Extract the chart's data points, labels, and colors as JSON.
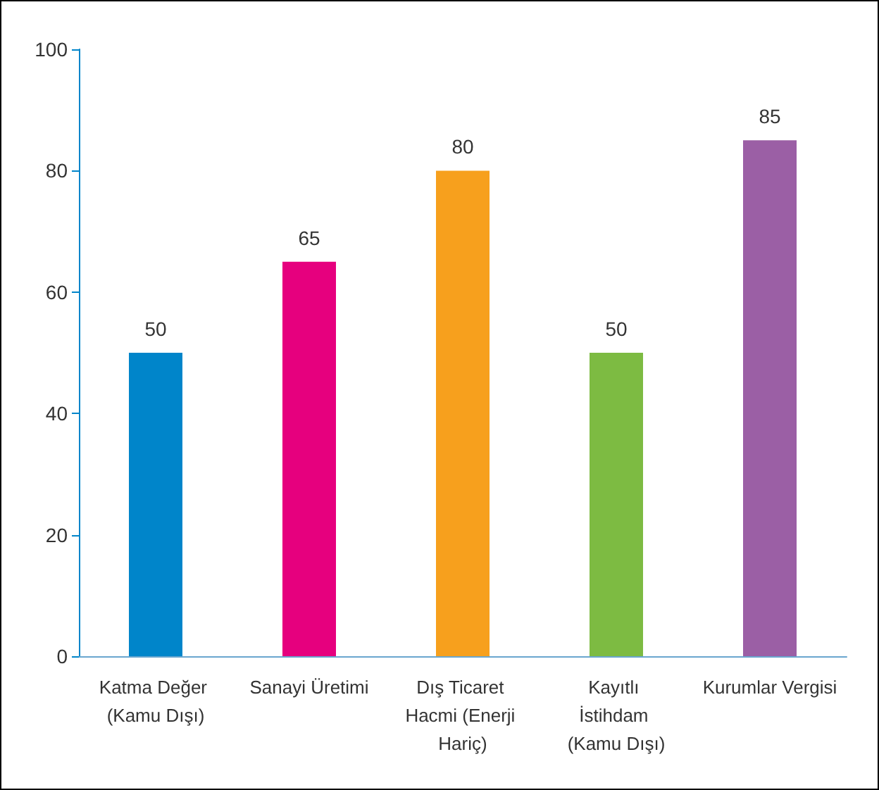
{
  "chart_data": {
    "type": "bar",
    "categories": [
      "Katma Değer (Kamu Dışı)",
      "Sanayi Üretimi",
      "Dış Ticaret Hacmi (Enerji Hariç)",
      "Kayıtlı İstihdam (Kamu Dışı)",
      "Kurumlar Vergisi"
    ],
    "values": [
      50,
      65,
      80,
      50,
      85
    ],
    "colors": [
      "#0085ca",
      "#e6007e",
      "#f7a01d",
      "#7dbb42",
      "#9b5fa5"
    ],
    "ylim": [
      0,
      100
    ],
    "yticks": [
      0,
      20,
      40,
      60,
      80,
      100
    ],
    "grid": false,
    "data_labels": true
  }
}
